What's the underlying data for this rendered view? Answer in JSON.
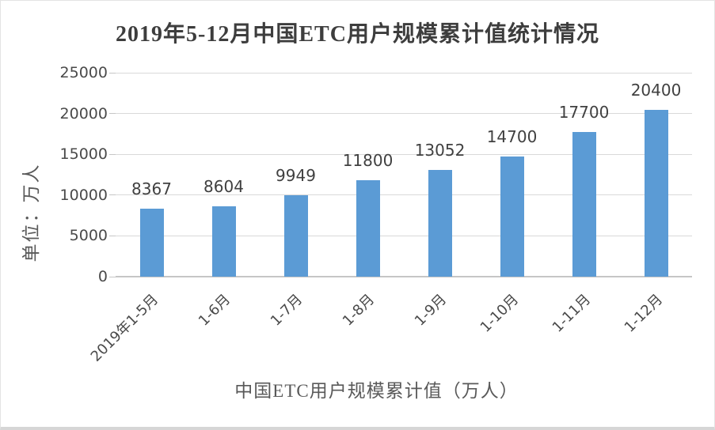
{
  "title": "2019年5-12月中国ETC用户规模累计值统计情况",
  "y_axis_unit_label": "单位：万人",
  "x_axis_title": "中国ETC用户规模累计值（万人）",
  "colors": {
    "bar": "#5b9bd5",
    "gridline": "#d9d9d9",
    "axis_line": "#c6c6c6",
    "title_text": "#3d3d3d",
    "data_label_text": "#404040",
    "tick_label_text": "#4a4a4a",
    "axis_title_text": "#595959",
    "background": "#ffffff"
  },
  "chart_data": {
    "type": "bar",
    "title": "2019年5-12月中国ETC用户规模累计值统计情况",
    "categories": [
      "2019年1-5月",
      "1-6月",
      "1-7月",
      "1-8月",
      "1-9月",
      "1-10月",
      "1-11月",
      "1-12月"
    ],
    "values": [
      8367,
      8604,
      9949,
      11800,
      13052,
      14700,
      17700,
      20400
    ],
    "data_labels": [
      "8367",
      "8604",
      "9949",
      "11800",
      "13052",
      "14700",
      "17700",
      "20400"
    ],
    "xlabel": "中国ETC用户规模累计值（万人）",
    "ylabel": "单位：万人",
    "ylim": [
      0,
      25000
    ],
    "yticks": [
      0,
      5000,
      10000,
      15000,
      20000,
      25000
    ],
    "grid": true,
    "legend_position": "none",
    "bar_orientation": "vertical"
  }
}
